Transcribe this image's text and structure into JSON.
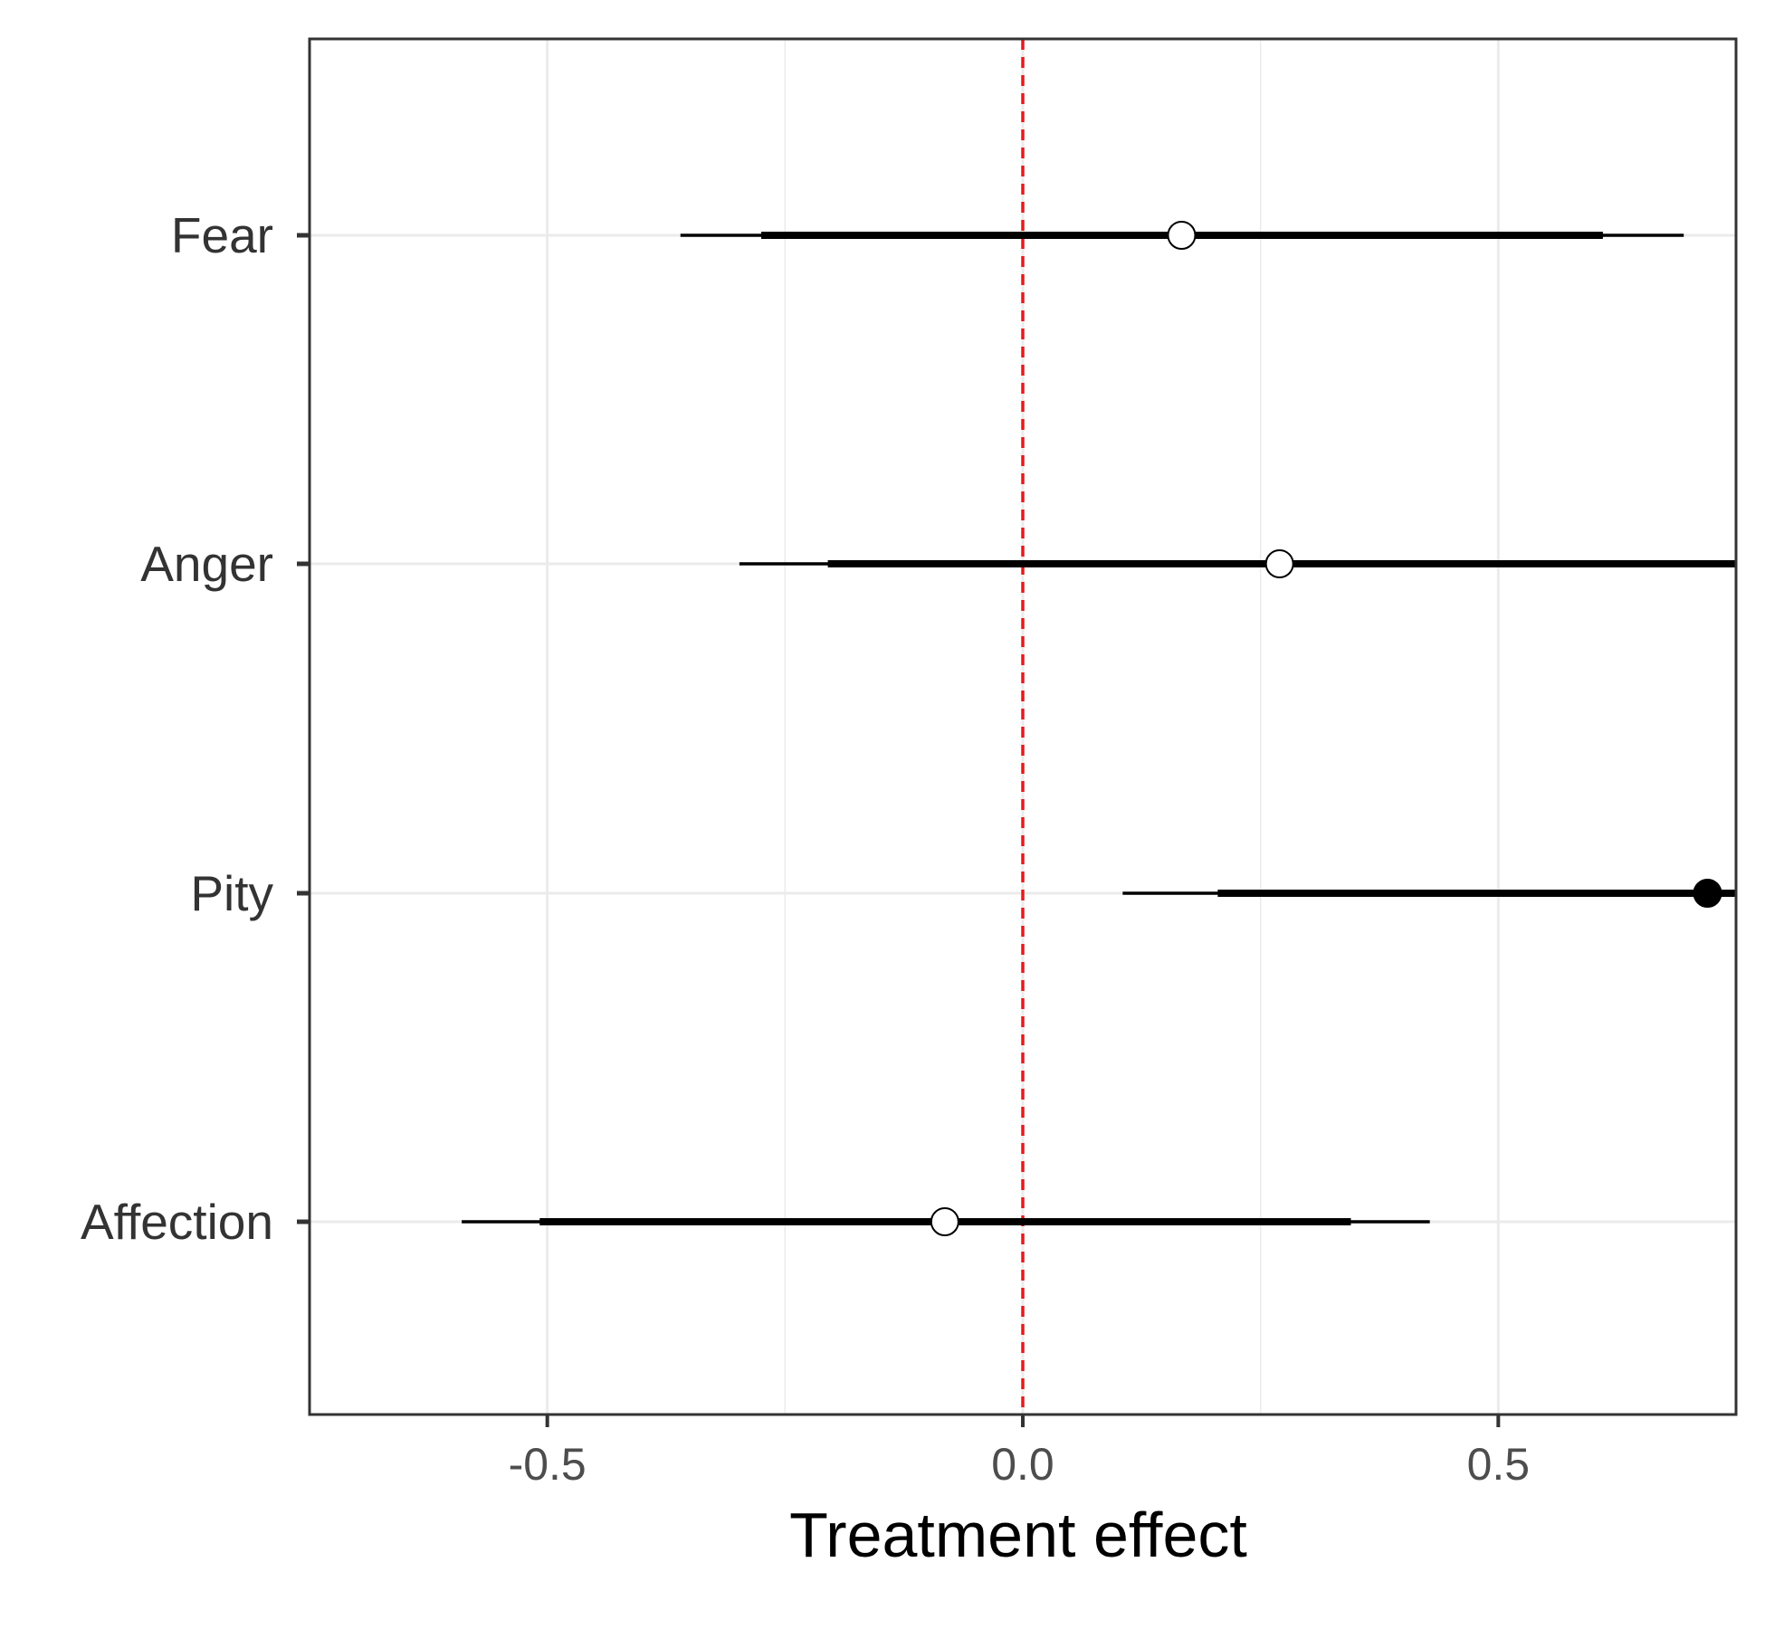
{
  "chart_data": {
    "type": "forest",
    "title": "",
    "xlabel": "Treatment effect",
    "ylabel": "",
    "xlim": [
      -0.75,
      0.75
    ],
    "x_ticks": [
      -0.5,
      0.0,
      0.5
    ],
    "x_tick_labels": [
      "-0.5",
      "0.0",
      "0.5"
    ],
    "reference_line": {
      "x": 0,
      "color": "#e41a1c",
      "style": "dashed"
    },
    "grid": true,
    "categories": [
      "Fear",
      "Anger",
      "Pity",
      "Affection"
    ],
    "series": [
      {
        "label": "Fear",
        "estimate": 0.167,
        "inner": [
          -0.275,
          0.61
        ],
        "outer": [
          -0.36,
          0.695
        ],
        "significant": false
      },
      {
        "label": "Anger",
        "estimate": 0.27,
        "inner": [
          -0.205,
          0.75
        ],
        "outer": [
          -0.298,
          0.78
        ],
        "significant": false
      },
      {
        "label": "Pity",
        "estimate": 0.72,
        "inner": [
          0.205,
          0.78
        ],
        "outer": [
          0.105,
          0.78
        ],
        "significant": true
      },
      {
        "label": "Affection",
        "estimate": -0.082,
        "inner": [
          -0.508,
          0.345
        ],
        "outer": [
          -0.59,
          0.428
        ],
        "significant": false
      }
    ],
    "colors": {
      "line": "#000000",
      "open_point_fill": "#ffffff",
      "filled_point_fill": "#000000",
      "grid": "#ebebeb",
      "panel_border": "#333333"
    }
  }
}
